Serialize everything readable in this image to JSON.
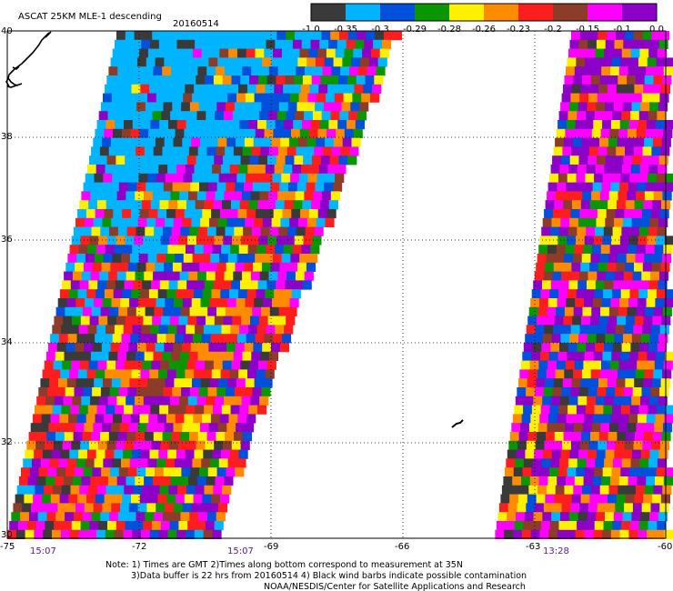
{
  "title": {
    "product": "ASCAT 25KM MLE-1 descending",
    "date": "20160514"
  },
  "colorbar": {
    "colors": [
      "#3a3a3a",
      "#00b4ff",
      "#0050dc",
      "#0a9600",
      "#fff000",
      "#ff8c00",
      "#ff1e1e",
      "#8c3c28",
      "#ff00ff",
      "#8c00c8"
    ],
    "tick_labels": [
      "-1.0",
      "-0.35",
      "-0.3",
      "-0.29",
      "-0.28",
      "-0.26",
      "-0.23",
      "-0.2",
      "-0.15",
      "-0.1",
      "0.0"
    ]
  },
  "axes": {
    "lon_labels": [
      "-75",
      "-72",
      "-69",
      "-66",
      "-63",
      "-60"
    ],
    "lat_labels": [
      "40",
      "38",
      "36",
      "34",
      "32",
      "30"
    ]
  },
  "swaths": [
    {
      "name": "west-swath",
      "time": "15:07"
    },
    {
      "name": "west-swath-2",
      "time": "15:07"
    },
    {
      "name": "east-swath",
      "time": "13:28"
    }
  ],
  "notes": {
    "line1": "Note: 1) Times are GMT 2)Times along bottom correspond to measurement at 35N",
    "line2": "3)Data buffer is 22 hrs from 20160514 4) Black wind barbs indicate possible contamination",
    "line3": "NOAA/NESDIS/Center for Satellite Applications and Research"
  },
  "layers": {
    "mle_mosaic": "mosaic",
    "coastline_icon": "coastline-icon",
    "island_icon": "island-icon"
  }
}
